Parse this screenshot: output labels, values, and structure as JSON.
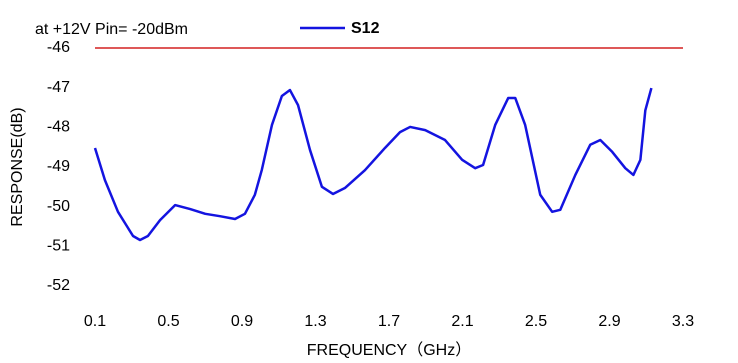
{
  "chart_data": {
    "type": "line",
    "title": "at +12V Pin=  -20dBm",
    "xlabel": "FREQUENCY（GHz）",
    "ylabel": "RESPONSE(dB)",
    "xlim": [
      0.1,
      3.3
    ],
    "xticks": [
      0.1,
      0.5,
      0.9,
      1.3,
      1.7,
      2.1,
      2.5,
      2.9,
      3.3
    ],
    "ylim": [
      -52,
      -46
    ],
    "yticks": [
      -46,
      -47,
      -48,
      -49,
      -50,
      -51,
      -52
    ],
    "top_line_color": "#d42020",
    "series": [
      {
        "name": "S12",
        "color": "#1414e0",
        "x": [
          0.1,
          0.154,
          0.225,
          0.307,
          0.345,
          0.388,
          0.454,
          0.536,
          0.618,
          0.7,
          0.78,
          0.862,
          0.916,
          0.97,
          1.008,
          1.063,
          1.117,
          1.161,
          1.205,
          1.27,
          1.335,
          1.395,
          1.46,
          1.569,
          1.678,
          1.76,
          1.815,
          1.897,
          2.005,
          2.098,
          2.169,
          2.212,
          2.278,
          2.349,
          2.387,
          2.441,
          2.523,
          2.588,
          2.632,
          2.714,
          2.795,
          2.85,
          2.915,
          2.986,
          3.03,
          3.068,
          3.095,
          3.128
        ],
        "values": [
          -48.52,
          -49.33,
          -50.13,
          -50.74,
          -50.84,
          -50.74,
          -50.34,
          -49.96,
          -50.06,
          -50.18,
          -50.24,
          -50.31,
          -50.18,
          -49.7,
          -49.07,
          -47.94,
          -47.21,
          -47.06,
          -47.44,
          -48.57,
          -49.5,
          -49.68,
          -49.53,
          -49.08,
          -48.52,
          -48.12,
          -47.99,
          -48.07,
          -48.32,
          -48.82,
          -49.03,
          -48.95,
          -47.94,
          -47.26,
          -47.26,
          -47.94,
          -49.7,
          -50.13,
          -50.08,
          -49.2,
          -48.44,
          -48.32,
          -48.62,
          -49.03,
          -49.2,
          -48.82,
          -47.57,
          -47.01
        ]
      }
    ]
  }
}
